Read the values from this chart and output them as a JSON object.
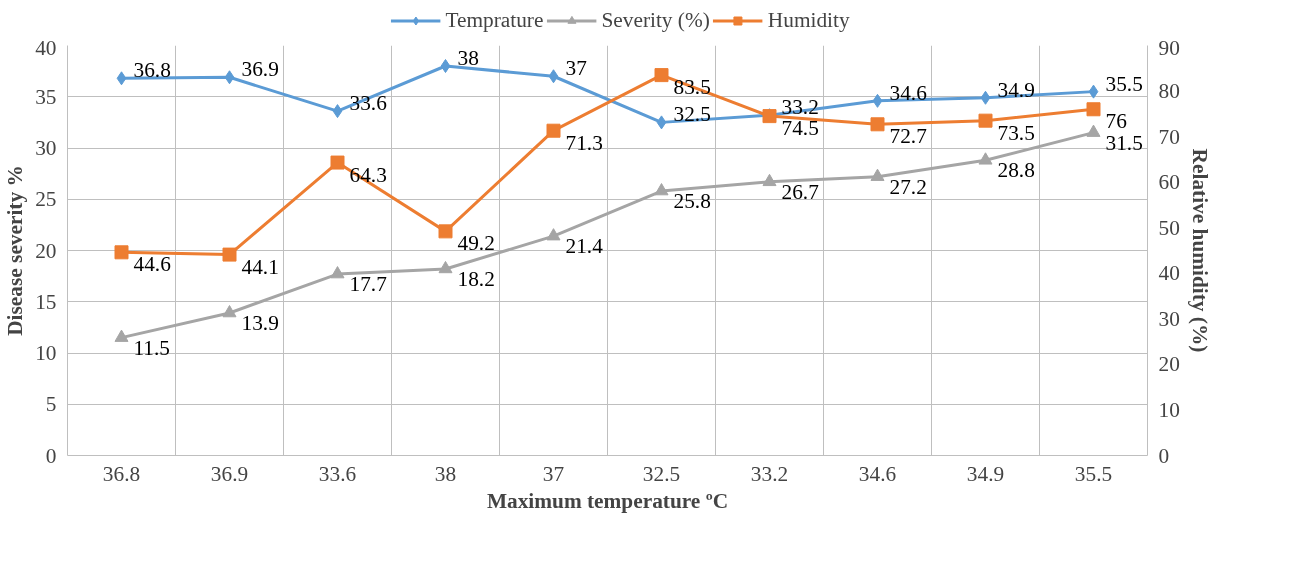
{
  "chart_data": {
    "type": "line",
    "xlabel": "Maximum temperature ºC",
    "ylabel": "Disease severity %",
    "y2label": "Relative humidity (%)",
    "categories": [
      "36.8",
      "36.9",
      "33.6",
      "38",
      "37",
      "32.5",
      "33.2",
      "34.6",
      "34.9",
      "35.5"
    ],
    "series": [
      {
        "name": "Temprature",
        "color": "#5b9bd5",
        "marker": "diamond",
        "values": [
          36.8,
          36.9,
          33.6,
          38,
          37,
          32.5,
          33.2,
          34.6,
          34.9,
          35.5
        ]
      },
      {
        "name": "Severity (%)",
        "color": "#a5a5a5",
        "marker": "triangle",
        "values": [
          11.5,
          13.9,
          17.7,
          18.2,
          21.4,
          25.8,
          26.7,
          27.2,
          28.8,
          31.5
        ]
      },
      {
        "name": "Humidity",
        "color": "#ed7d31",
        "marker": "square",
        "axis": "y2",
        "values": [
          44.6,
          44.1,
          64.3,
          49.2,
          71.3,
          83.5,
          74.5,
          72.7,
          73.5,
          76
        ]
      }
    ],
    "ylim": [
      0,
      40
    ],
    "yticks": [
      0,
      5,
      10,
      15,
      20,
      25,
      30,
      35,
      40
    ],
    "y2lim": [
      0,
      90
    ],
    "y2ticks": [
      0,
      10,
      20,
      30,
      40,
      50,
      60,
      70,
      80,
      90
    ],
    "grid": true,
    "legend": "top",
    "data_labels": true,
    "line_style": "solid"
  }
}
